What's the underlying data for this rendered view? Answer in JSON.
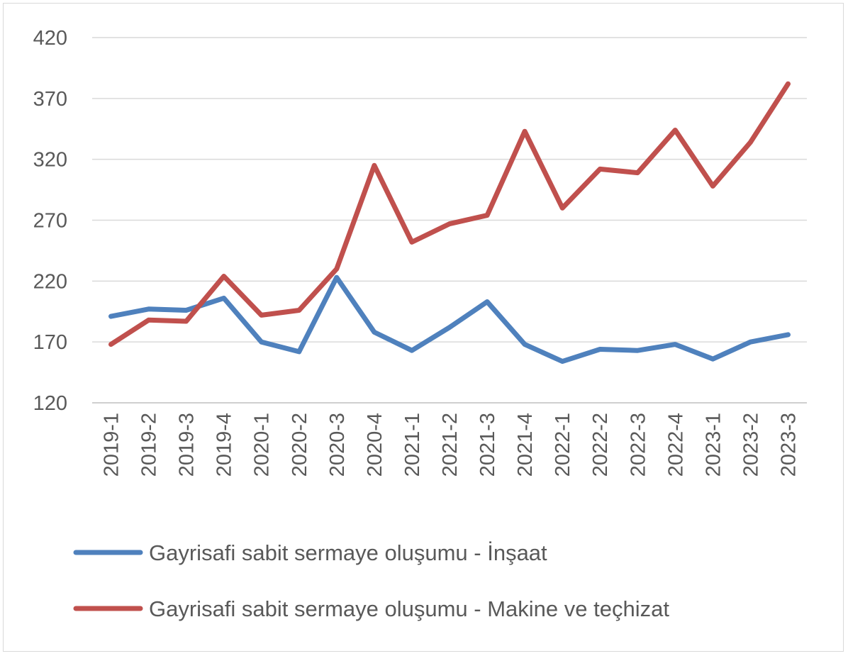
{
  "chart_data": {
    "type": "line",
    "title": "",
    "xlabel": "",
    "ylabel": "",
    "ylim": [
      120,
      420
    ],
    "yticks": [
      "120",
      "170",
      "220",
      "270",
      "320",
      "370",
      "420"
    ],
    "grid": true,
    "legend_position": "bottom",
    "categories": [
      "2019-1",
      "2019-2",
      "2019-3",
      "2019-4",
      "2020-1",
      "2020-2",
      "2020-3",
      "2020-4",
      "2021-1",
      "2021-2",
      "2021-3",
      "2021-4",
      "2022-1",
      "2022-2",
      "2022-3",
      "2022-4",
      "2023-1",
      "2023-2",
      "2023-3"
    ],
    "series": [
      {
        "name": "Gayrisafi sabit sermaye oluşumu - İnşaat",
        "color": "#4F81BD",
        "values": [
          191,
          197,
          196,
          206,
          170,
          162,
          223,
          178,
          163,
          182,
          203,
          168,
          154,
          164,
          163,
          168,
          156,
          170,
          176
        ]
      },
      {
        "name": "Gayrisafi sabit sermaye oluşumu - Makine ve teçhizat",
        "color": "#C0504D",
        "values": [
          168,
          188,
          187,
          224,
          192,
          196,
          230,
          315,
          252,
          267,
          274,
          343,
          280,
          312,
          309,
          344,
          298,
          334,
          382
        ]
      }
    ]
  }
}
